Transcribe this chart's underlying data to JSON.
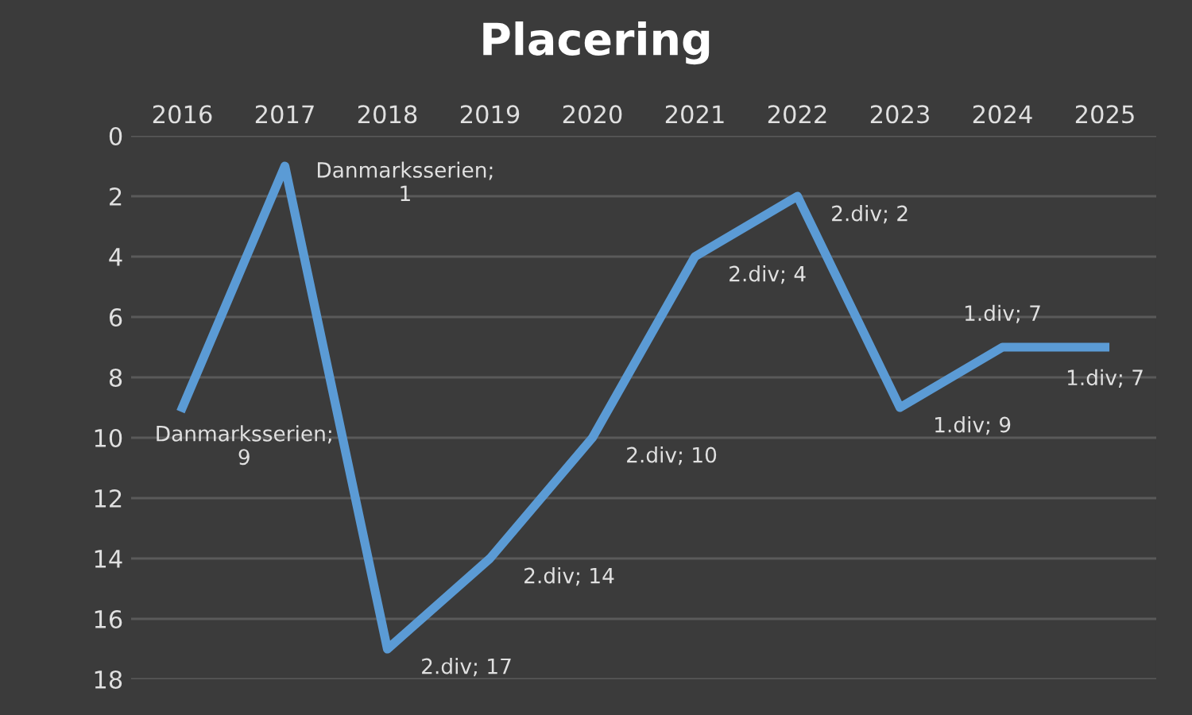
{
  "chart_data": {
    "type": "line",
    "title": "Placering",
    "categories": [
      "2016",
      "2017",
      "2018",
      "2019",
      "2020",
      "2021",
      "2022",
      "2023",
      "2024",
      "2025"
    ],
    "series": [
      {
        "color": "#5b9bd5",
        "values": [
          9,
          1,
          17,
          14,
          10,
          4,
          2,
          9,
          7,
          7
        ],
        "value_labels": [
          "Danmarksserien; 9",
          "Danmarksserien; 1",
          "2.div; 17",
          "2.div; 14",
          "2.div; 10",
          "2.div; 4",
          "2.div; 2",
          "1.div; 9",
          "1.div; 7",
          "1.div; 7"
        ]
      }
    ],
    "ylim": [
      18,
      0
    ],
    "yticks": [
      0,
      2,
      4,
      6,
      8,
      10,
      12,
      14,
      16,
      18
    ],
    "grid": "y",
    "marker": "none",
    "line_style": "solid",
    "legend": false
  }
}
